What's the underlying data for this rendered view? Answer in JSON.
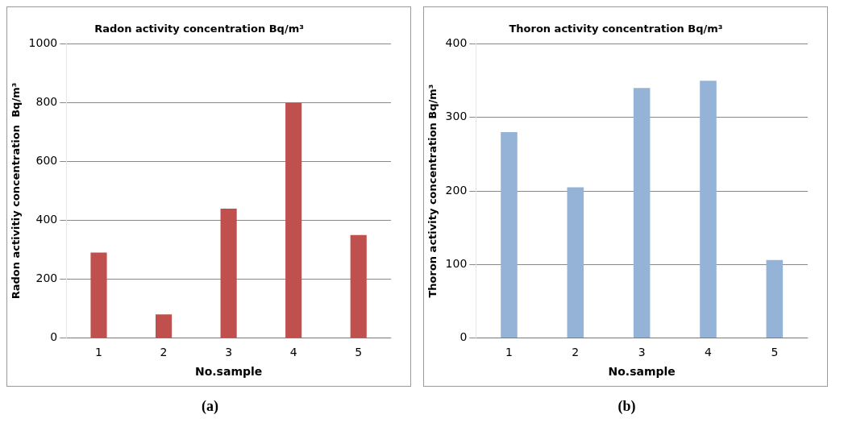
{
  "chart_data": [
    {
      "type": "bar",
      "title": "Radon activity concentration Bq/m³",
      "xlabel": "No.sample",
      "ylabel": "Radon activitiy concentration  Bq/m³",
      "categories": [
        "1",
        "2",
        "3",
        "4",
        "5"
      ],
      "values": [
        290,
        80,
        440,
        800,
        350
      ],
      "color": "#c0504d",
      "ylim": [
        0,
        1000
      ],
      "yticks": [
        0,
        200,
        400,
        600,
        800,
        1000
      ],
      "grid": "y",
      "legend": false,
      "annotations": [
        "(a)"
      ]
    },
    {
      "type": "bar",
      "title": "Thoron activity concentration Bq/m³",
      "xlabel": "No.sample",
      "ylabel": "Thoron activity concentration Bq/m³",
      "categories": [
        "1",
        "2",
        "3",
        "4",
        "5"
      ],
      "values": [
        280,
        205,
        340,
        350,
        106
      ],
      "color": "#95b3d7",
      "ylim": [
        0,
        400
      ],
      "yticks": [
        0,
        100,
        200,
        300,
        400
      ],
      "grid": "y",
      "legend": false,
      "annotations": [
        "(b)"
      ]
    }
  ]
}
